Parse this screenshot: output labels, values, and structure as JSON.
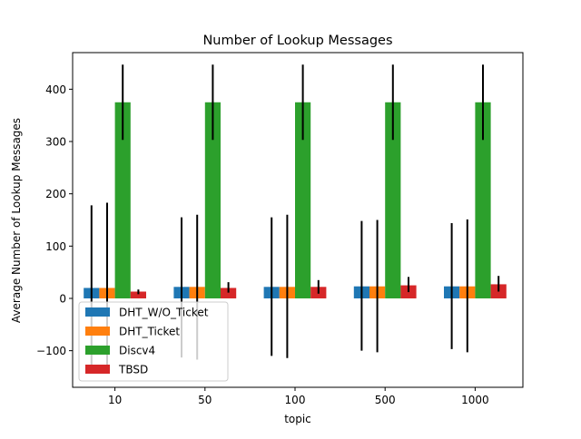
{
  "chart_data": {
    "type": "bar",
    "title": "Number of Lookup Messages",
    "xlabel": "topic",
    "ylabel": "Average Number of Lookup Messages",
    "categories": [
      "10",
      "50",
      "100",
      "500",
      "1000"
    ],
    "ylim": [
      -170,
      470
    ],
    "yticks": [
      -100,
      0,
      100,
      200,
      300,
      400
    ],
    "grid": false,
    "legend_position": "lower-left",
    "series": [
      {
        "name": "DHT_W/O_Ticket",
        "color": "#1f77b4",
        "values": [
          20,
          22,
          22,
          23,
          23
        ],
        "errors": [
          [
            -140,
            178
          ],
          [
            -113,
            155
          ],
          [
            -110,
            155
          ],
          [
            -100,
            148
          ],
          [
            -97,
            144
          ]
        ]
      },
      {
        "name": "DHT_Ticket",
        "color": "#ff7f0e",
        "values": [
          20,
          22,
          22,
          23,
          23
        ],
        "errors": [
          [
            -143,
            183
          ],
          [
            -117,
            160
          ],
          [
            -114,
            160
          ],
          [
            -103,
            150
          ],
          [
            -103,
            151
          ]
        ]
      },
      {
        "name": "Discv4",
        "color": "#2ca02c",
        "values": [
          375,
          375,
          375,
          375,
          375
        ],
        "errors": [
          [
            303,
            447
          ],
          [
            303,
            447
          ],
          [
            303,
            447
          ],
          [
            303,
            447
          ],
          [
            303,
            447
          ]
        ]
      },
      {
        "name": "TBSD",
        "color": "#d62728",
        "values": [
          13,
          20,
          22,
          25,
          27
        ],
        "errors": [
          [
            8,
            17
          ],
          [
            11,
            31
          ],
          [
            9,
            35
          ],
          [
            12,
            41
          ],
          [
            13,
            43
          ]
        ]
      }
    ]
  }
}
